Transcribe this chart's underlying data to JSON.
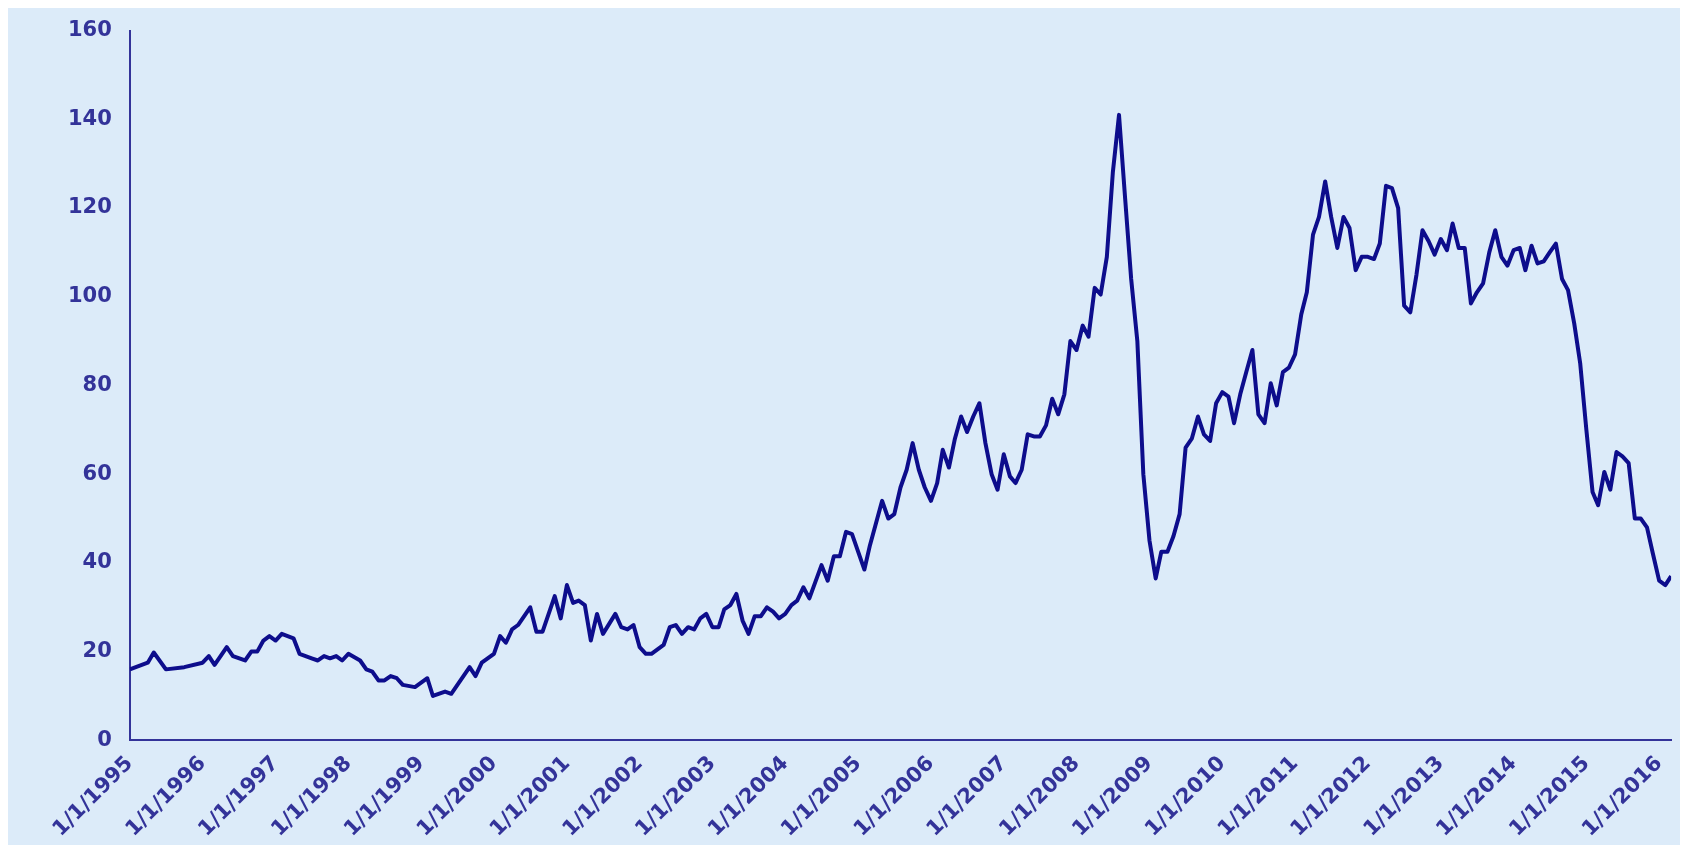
{
  "chart_data": {
    "type": "line",
    "line_style": "solid",
    "marker": "none",
    "grid": false,
    "legend": false,
    "xlim": [
      "1995-01",
      "2016-03"
    ],
    "xticks": [
      {
        "value": "1995-01-01",
        "label": "1/1/1995"
      },
      {
        "value": "1996-01-01",
        "label": "1/1/1996"
      },
      {
        "value": "1997-01-01",
        "label": "1/1/1997"
      },
      {
        "value": "1998-01-01",
        "label": "1/1/1998"
      },
      {
        "value": "1999-01-01",
        "label": "1/1/1999"
      },
      {
        "value": "2000-01-01",
        "label": "1/1/2000"
      },
      {
        "value": "2001-01-01",
        "label": "1/1/2001"
      },
      {
        "value": "2002-01-01",
        "label": "1/1/2002"
      },
      {
        "value": "2003-01-01",
        "label": "1/1/2003"
      },
      {
        "value": "2004-01-01",
        "label": "1/1/2004"
      },
      {
        "value": "2005-01-01",
        "label": "1/1/2005"
      },
      {
        "value": "2006-01-01",
        "label": "1/1/2006"
      },
      {
        "value": "2007-01-01",
        "label": "1/1/2007"
      },
      {
        "value": "2008-01-01",
        "label": "1/1/2008"
      },
      {
        "value": "2009-01-01",
        "label": "1/1/2009"
      },
      {
        "value": "2010-01-01",
        "label": "1/1/2010"
      },
      {
        "value": "2011-01-01",
        "label": "1/1/2011"
      },
      {
        "value": "2012-01-01",
        "label": "1/1/2012"
      },
      {
        "value": "2013-01-01",
        "label": "1/1/2013"
      },
      {
        "value": "2014-01-01",
        "label": "1/1/2014"
      },
      {
        "value": "2015-01-01",
        "label": "1/1/2015"
      },
      {
        "value": "2016-01-01",
        "label": "1/1/2016"
      }
    ],
    "ylim": [
      0,
      160
    ],
    "yticks": [
      0,
      20,
      40,
      60,
      80,
      100,
      120,
      140,
      160
    ],
    "series": [
      {
        "color": "#0d0d8c",
        "x": [
          "1995-01",
          "1995-04",
          "1995-05",
          "1995-07",
          "1995-10",
          "1996-01",
          "1996-02",
          "1996-03",
          "1996-05",
          "1996-06",
          "1996-08",
          "1996-09",
          "1996-10",
          "1996-11",
          "1996-12",
          "1997-01",
          "1997-02",
          "1997-04",
          "1997-05",
          "1997-07",
          "1997-08",
          "1997-09",
          "1997-10",
          "1997-11",
          "1997-12",
          "1998-01",
          "1998-03",
          "1998-04",
          "1998-05",
          "1998-06",
          "1998-07",
          "1998-08",
          "1998-09",
          "1998-10",
          "1998-12",
          "1999-02",
          "1999-03",
          "1999-05",
          "1999-06",
          "1999-08",
          "1999-09",
          "1999-10",
          "1999-11",
          "2000-01",
          "2000-02",
          "2000-03",
          "2000-04",
          "2000-05",
          "2000-07",
          "2000-08",
          "2000-09",
          "2000-11",
          "2000-12",
          "2001-01",
          "2001-02",
          "2001-03",
          "2001-04",
          "2001-05",
          "2001-06",
          "2001-07",
          "2001-09",
          "2001-10",
          "2001-11",
          "2001-12",
          "2002-01",
          "2002-02",
          "2002-03",
          "2002-05",
          "2002-06",
          "2002-07",
          "2002-08",
          "2002-09",
          "2002-10",
          "2002-11",
          "2002-12",
          "2003-01",
          "2003-02",
          "2003-03",
          "2003-04",
          "2003-05",
          "2003-06",
          "2003-07",
          "2003-08",
          "2003-09",
          "2003-10",
          "2003-11",
          "2003-12",
          "2004-01",
          "2004-02",
          "2004-03",
          "2004-04",
          "2004-05",
          "2004-07",
          "2004-08",
          "2004-09",
          "2004-10",
          "2004-11",
          "2004-12",
          "2005-02",
          "2005-03",
          "2005-05",
          "2005-06",
          "2005-07",
          "2005-08",
          "2005-09",
          "2005-10",
          "2005-11",
          "2005-12",
          "2006-01",
          "2006-02",
          "2006-03",
          "2006-04",
          "2006-05",
          "2006-06",
          "2006-07",
          "2006-08",
          "2006-09",
          "2006-10",
          "2006-11",
          "2006-12",
          "2007-01",
          "2007-02",
          "2007-03",
          "2007-04",
          "2007-05",
          "2007-06",
          "2007-07",
          "2007-08",
          "2007-09",
          "2007-10",
          "2007-11",
          "2007-12",
          "2008-01",
          "2008-02",
          "2008-03",
          "2008-04",
          "2008-05",
          "2008-06",
          "2008-07",
          "2008-08",
          "2008-09",
          "2008-10",
          "2008-11",
          "2008-12",
          "2009-01",
          "2009-02",
          "2009-03",
          "2009-04",
          "2009-05",
          "2009-06",
          "2009-07",
          "2009-08",
          "2009-09",
          "2009-10",
          "2009-11",
          "2009-12",
          "2010-01",
          "2010-02",
          "2010-03",
          "2010-04",
          "2010-05",
          "2010-06",
          "2010-07",
          "2010-08",
          "2010-09",
          "2010-10",
          "2010-11",
          "2010-12",
          "2011-01",
          "2011-02",
          "2011-03",
          "2011-04",
          "2011-05",
          "2011-06",
          "2011-07",
          "2011-08",
          "2011-09",
          "2011-10",
          "2011-11",
          "2011-12",
          "2012-01",
          "2012-02",
          "2012-03",
          "2012-04",
          "2012-05",
          "2012-06",
          "2012-07",
          "2012-08",
          "2012-09",
          "2012-10",
          "2012-11",
          "2012-12",
          "2013-01",
          "2013-02",
          "2013-03",
          "2013-04",
          "2013-05",
          "2013-06",
          "2013-07",
          "2013-08",
          "2013-09",
          "2013-10",
          "2013-11",
          "2013-12",
          "2014-01",
          "2014-02",
          "2014-03",
          "2014-04",
          "2014-05",
          "2014-06",
          "2014-07",
          "2014-08",
          "2014-09",
          "2014-10",
          "2014-11",
          "2014-12",
          "2015-01",
          "2015-02",
          "2015-03",
          "2015-04",
          "2015-05",
          "2015-06",
          "2015-07",
          "2015-08",
          "2015-09",
          "2015-10",
          "2015-11",
          "2015-12",
          "2016-01",
          "2016-02",
          "2016-03"
        ],
        "values": [
          16,
          17.5,
          19.8,
          16,
          16.5,
          17.5,
          19,
          17,
          21,
          19,
          18,
          20,
          20,
          22.5,
          23.5,
          22.5,
          24,
          23,
          19.5,
          18.5,
          18,
          19,
          18.5,
          19,
          18,
          19.5,
          18,
          16,
          15.5,
          13.5,
          13.5,
          14.5,
          14,
          12.5,
          12,
          14,
          10,
          11,
          10.5,
          14.5,
          16.5,
          14.5,
          17.5,
          19.5,
          23.5,
          22,
          25,
          26,
          30,
          24.5,
          24.5,
          32.5,
          27.5,
          35,
          31,
          31.5,
          30.5,
          22.5,
          28.5,
          24,
          28.5,
          25.5,
          25,
          26,
          21,
          19.5,
          19.5,
          21.5,
          25.5,
          26,
          24,
          25.5,
          25,
          27.5,
          28.5,
          25.5,
          25.5,
          29.5,
          30.5,
          33,
          27,
          24,
          28,
          28,
          30,
          29,
          27.5,
          28.5,
          30.5,
          31.5,
          34.5,
          32,
          39.5,
          36,
          41.5,
          41.5,
          47,
          46.5,
          38.5,
          44,
          54,
          50,
          51,
          57,
          61,
          67,
          61,
          57,
          54,
          58,
          65.5,
          61.5,
          68,
          73,
          69.5,
          73,
          76,
          67,
          60,
          56.5,
          64.5,
          59.5,
          58,
          61,
          69,
          68.5,
          68.5,
          71,
          77,
          73.5,
          78,
          90,
          88,
          93.5,
          91,
          102,
          100.5,
          109,
          128,
          141,
          122,
          104,
          90,
          60,
          45,
          36.5,
          42.5,
          42.5,
          46,
          51,
          66,
          68,
          73,
          69,
          67.5,
          76,
          78.5,
          77.5,
          71.5,
          78,
          83,
          88,
          73.5,
          71.5,
          80.5,
          75.5,
          83,
          84,
          87,
          96,
          101,
          114,
          118,
          126,
          118,
          111,
          118,
          115.5,
          106,
          109,
          109,
          108.5,
          112,
          125,
          124.5,
          120,
          98,
          96.5,
          105,
          115,
          112.5,
          109.5,
          113,
          110.5,
          116.5,
          111,
          111,
          98.5,
          101,
          103,
          110,
          115,
          109,
          107,
          110.5,
          111,
          106,
          111.5,
          107.5,
          108,
          110,
          112,
          104,
          101.5,
          94,
          85,
          70,
          56,
          53,
          60.5,
          56.5,
          65,
          64,
          62.5,
          50,
          50,
          48,
          42,
          36,
          35,
          37
        ]
      }
    ]
  }
}
